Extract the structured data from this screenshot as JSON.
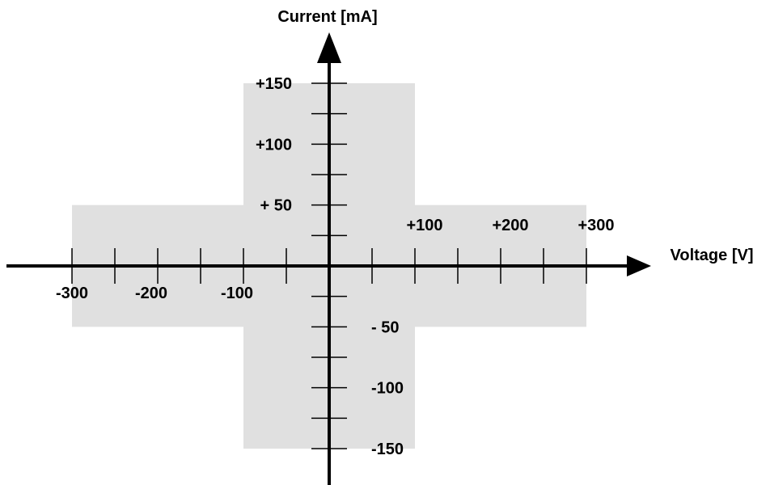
{
  "axes": {
    "x_title": "Voltage [V]",
    "y_title": "Current [mA]"
  },
  "operating_region": {
    "fill_color": "#e0e0e0",
    "segments": [
      {
        "voltage_range": [
          -300,
          300
        ],
        "current_range": [
          -50,
          50
        ]
      },
      {
        "voltage_range": [
          -100,
          100
        ],
        "current_range": [
          -150,
          150
        ]
      }
    ]
  },
  "x_ticks": {
    "labeled": [
      {
        "value": -300,
        "label": "-300"
      },
      {
        "value": -200,
        "label": "-200"
      },
      {
        "value": -100,
        "label": "-100"
      },
      {
        "value": 100,
        "label": "+100"
      },
      {
        "value": 200,
        "label": "+200"
      },
      {
        "value": 300,
        "label": "+300"
      }
    ],
    "step": 50,
    "range": [
      -300,
      300
    ]
  },
  "y_ticks": {
    "labeled": [
      {
        "value": 150,
        "label": "+150"
      },
      {
        "value": 100,
        "label": "+100"
      },
      {
        "value": 50,
        "label": "+ 50"
      },
      {
        "value": -50,
        "label": "- 50"
      },
      {
        "value": -100,
        "label": "-100"
      },
      {
        "value": -150,
        "label": "-150"
      }
    ],
    "step": 25,
    "range": [
      -150,
      150
    ]
  },
  "colors": {
    "axis": "#000000",
    "region": "#e0e0e0"
  }
}
